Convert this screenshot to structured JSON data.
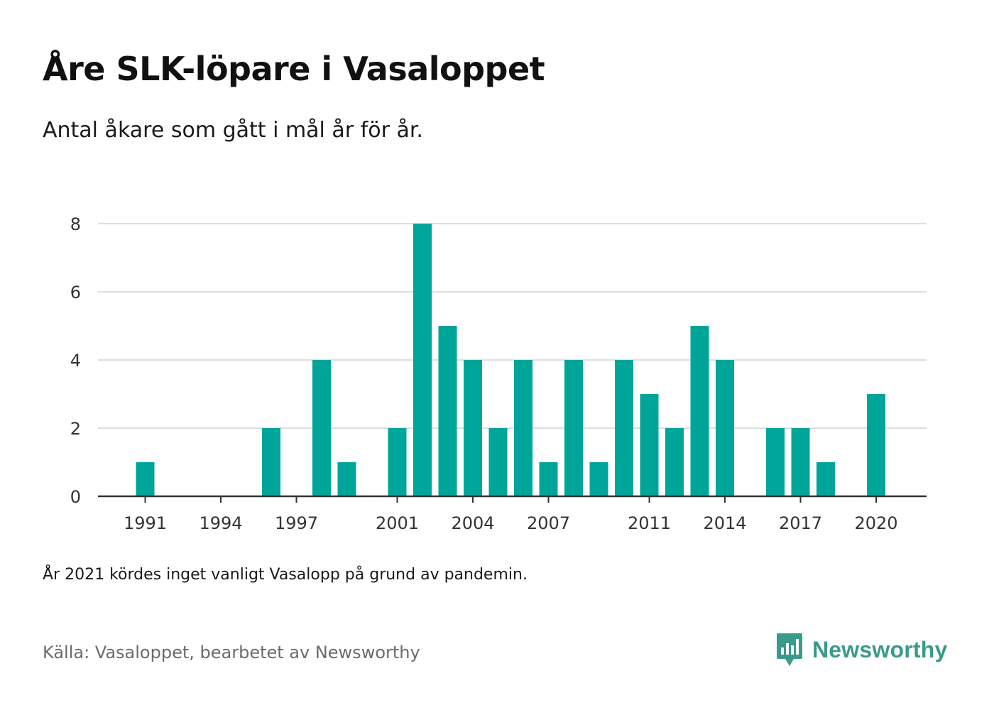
{
  "header": {
    "title": "Åre SLK-löpare i Vasaloppet",
    "subtitle": "Antal åkare som gått i mål år för år."
  },
  "footer": {
    "note": "År 2021 kördes inget vanligt Vasalopp på grund av pandemin.",
    "source": "Källa: Vasaloppet, bearbetet av Newsworthy",
    "brand": "Newsworthy"
  },
  "colors": {
    "bar": "#00a59a",
    "grid": "#dddddd",
    "axis": "#333333",
    "brand": "#3a9a8c"
  },
  "chart_data": {
    "type": "bar",
    "title": "Åre SLK-löpare i Vasaloppet",
    "subtitle": "Antal åkare som gått i mål år för år.",
    "xlabel": "",
    "ylabel": "",
    "ylim": [
      0,
      8
    ],
    "yticks": [
      0,
      2,
      4,
      6,
      8
    ],
    "xticks": [
      1991,
      1994,
      1997,
      2001,
      2004,
      2007,
      2011,
      2014,
      2017,
      2020
    ],
    "grid": true,
    "legend": "none",
    "categories": [
      1991,
      1992,
      1993,
      1994,
      1995,
      1996,
      1997,
      1998,
      1999,
      2000,
      2001,
      2002,
      2003,
      2004,
      2005,
      2006,
      2007,
      2008,
      2009,
      2010,
      2011,
      2012,
      2013,
      2014,
      2015,
      2016,
      2017,
      2018,
      2019,
      2020
    ],
    "values": [
      1,
      0,
      0,
      0,
      0,
      2,
      0,
      4,
      1,
      0,
      2,
      8,
      5,
      4,
      2,
      4,
      1,
      4,
      1,
      4,
      3,
      2,
      5,
      4,
      0,
      2,
      2,
      1,
      0,
      3
    ]
  }
}
